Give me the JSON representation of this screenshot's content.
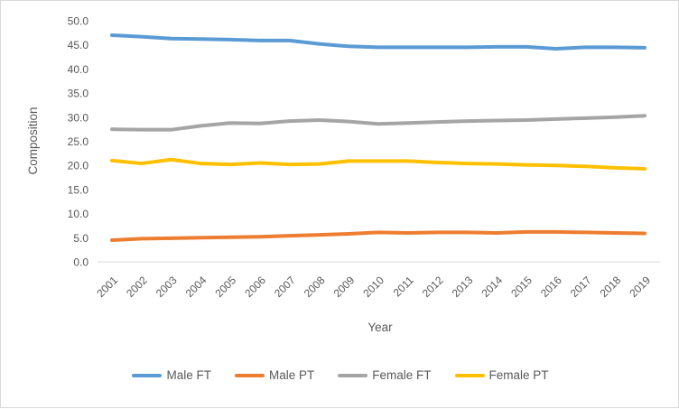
{
  "chart_data": {
    "type": "line",
    "title": "",
    "xlabel": "Year",
    "ylabel": "Composition",
    "ylim": [
      0,
      50
    ],
    "ytick_step": 5,
    "ytick_decimals": 1,
    "grid": false,
    "legend_position": "bottom",
    "categories": [
      "2001",
      "2002",
      "2003",
      "2004",
      "2005",
      "2006",
      "2007",
      "2008",
      "2009",
      "2010",
      "2011",
      "2012",
      "2013",
      "2014",
      "2015",
      "2016",
      "2017",
      "2018",
      "2019"
    ],
    "series": [
      {
        "name": "Male FT",
        "color": "#5B9BD5",
        "values": [
          47.0,
          46.7,
          46.3,
          46.2,
          46.1,
          45.9,
          45.9,
          45.2,
          44.7,
          44.5,
          44.5,
          44.5,
          44.5,
          44.6,
          44.6,
          44.2,
          44.5,
          44.5,
          44.4
        ]
      },
      {
        "name": "Male PT",
        "color": "#ED7D31",
        "values": [
          4.5,
          4.8,
          4.9,
          5.0,
          5.1,
          5.2,
          5.4,
          5.6,
          5.8,
          6.1,
          6.0,
          6.1,
          6.1,
          6.0,
          6.2,
          6.2,
          6.1,
          6.0,
          5.9
        ]
      },
      {
        "name": "Female FT",
        "color": "#A5A5A5",
        "values": [
          27.5,
          27.4,
          27.4,
          28.2,
          28.8,
          28.7,
          29.2,
          29.4,
          29.1,
          28.6,
          28.8,
          29.0,
          29.2,
          29.3,
          29.4,
          29.6,
          29.8,
          30.0,
          30.3
        ]
      },
      {
        "name": "Female PT",
        "color": "#FFC000",
        "values": [
          21.0,
          20.4,
          21.2,
          20.4,
          20.2,
          20.5,
          20.2,
          20.3,
          20.9,
          20.9,
          20.9,
          20.6,
          20.4,
          20.3,
          20.1,
          20.0,
          19.8,
          19.5,
          19.3
        ]
      }
    ]
  },
  "colors": {
    "text": "#595959",
    "axis_line": "#d9d9d9",
    "frame_border": "#d9d9d9",
    "background": "#ffffff"
  }
}
